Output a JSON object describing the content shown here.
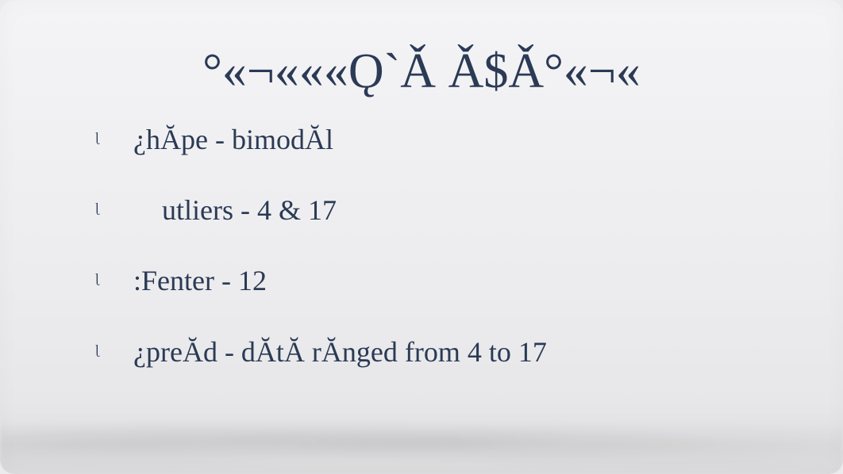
{
  "slide": {
    "title": "°«¬«««Ǫ`Ǎ Ǎ$Ǎ°«¬«",
    "title_color": "#2b3a55",
    "title_fontsize": 62,
    "background_color": "#ececee",
    "bullet_marker": "ᶩ",
    "bullet_color": "#2b3a55",
    "bullet_fontsize": 36,
    "bullets": [
      {
        "text": "¿hĂpe - bimodĂl"
      },
      {
        "text": " utliers - 4 & 17"
      },
      {
        "text": ":Fenter - 12"
      },
      {
        "text": "¿preĂd - dĂtĂ rĂnged from 4 to 17"
      }
    ]
  }
}
